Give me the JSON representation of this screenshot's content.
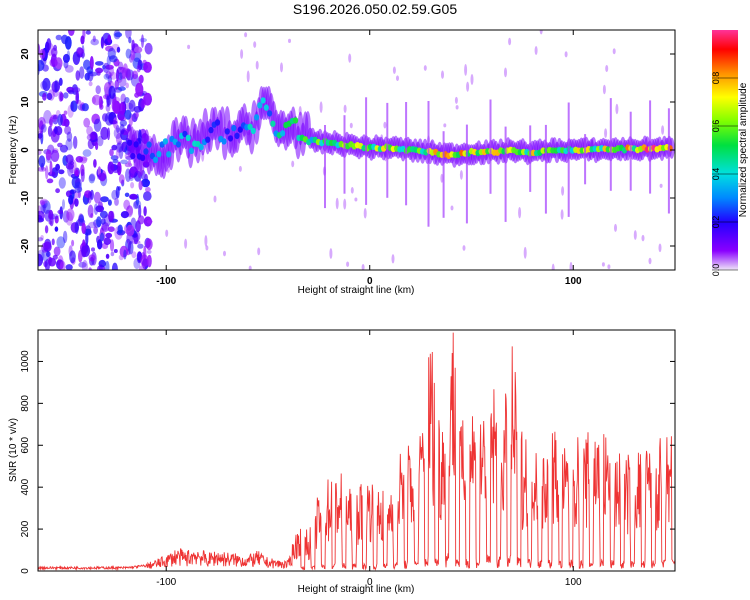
{
  "title": "S196.2026.050.02.59.G05",
  "chart_data": [
    {
      "type": "heatmap",
      "panel": "spectrogram",
      "xlabel": "Height of straight line (km)",
      "ylabel": "Frequency (Hz)",
      "xlim": [
        -163,
        150
      ],
      "ylim": [
        -25,
        25
      ],
      "xticks": [
        -100,
        0,
        100
      ],
      "yticks": [
        -20,
        -10,
        0,
        10,
        20
      ],
      "colorbar": {
        "label": "Normalized spectral amplitude",
        "range": [
          0,
          1
        ],
        "ticks": [
          "0.0",
          "0.2",
          "0.4",
          "0.6",
          "0.8"
        ]
      },
      "ridge": {
        "x": [
          -115,
          -105,
          -95,
          -85,
          -75,
          -65,
          -58,
          -52,
          -45,
          -38,
          -30,
          -20,
          -10,
          0,
          10,
          20,
          30,
          40,
          50,
          60,
          70,
          80,
          90,
          100,
          110,
          120,
          130,
          140,
          148
        ],
        "freq": [
          0,
          -1,
          1,
          2,
          4,
          3,
          5,
          10,
          4,
          5,
          2,
          1.5,
          1,
          0.5,
          0.5,
          0,
          -0.5,
          -1,
          -0.5,
          -0.5,
          0,
          -0.5,
          0,
          0,
          0,
          0.2,
          0.2,
          0.3,
          0.3
        ],
        "amplitude": [
          0.3,
          0.35,
          0.35,
          0.4,
          0.35,
          0.3,
          0.45,
          0.4,
          0.55,
          0.6,
          0.6,
          0.6,
          0.65,
          0.65,
          0.7,
          0.7,
          0.75,
          0.8,
          0.75,
          0.75,
          0.75,
          0.75,
          0.7,
          0.7,
          0.7,
          0.75,
          0.8,
          0.95,
          0.9
        ]
      }
    },
    {
      "type": "line",
      "panel": "snr",
      "xlabel": "Height of straight line (km)",
      "ylabel": "SNR (10 * v/v)",
      "xlim": [
        -163,
        150
      ],
      "ylim": [
        0,
        1150
      ],
      "xticks": [
        -100,
        0,
        100
      ],
      "yticks": [
        0,
        200,
        400,
        600,
        800,
        1000
      ],
      "series": [
        {
          "name": "SNR",
          "color": "#ee3333",
          "x": [
            -163,
            -150,
            -140,
            -130,
            -120,
            -110,
            -105,
            -100,
            -95,
            -90,
            -85,
            -80,
            -75,
            -70,
            -65,
            -60,
            -55,
            -50,
            -45,
            -40,
            -36,
            -33,
            -30,
            -25,
            -20,
            -15,
            -10,
            -5,
            0,
            5,
            10,
            15,
            20,
            25,
            30,
            35,
            40,
            45,
            50,
            55,
            60,
            65,
            70,
            75,
            80,
            85,
            90,
            95,
            100,
            105,
            110,
            115,
            120,
            125,
            130,
            135,
            140,
            145,
            150
          ],
          "y": [
            15,
            15,
            15,
            15,
            15,
            25,
            40,
            55,
            80,
            70,
            90,
            60,
            75,
            65,
            60,
            55,
            70,
            45,
            40,
            35,
            160,
            220,
            150,
            320,
            380,
            420,
            330,
            350,
            390,
            340,
            360,
            480,
            520,
            560,
            980,
            600,
            1120,
            580,
            720,
            660,
            780,
            650,
            900,
            560,
            640,
            520,
            600,
            480,
            560,
            520,
            600,
            580,
            520,
            460,
            480,
            500,
            520,
            540,
            600
          ]
        }
      ]
    }
  ]
}
